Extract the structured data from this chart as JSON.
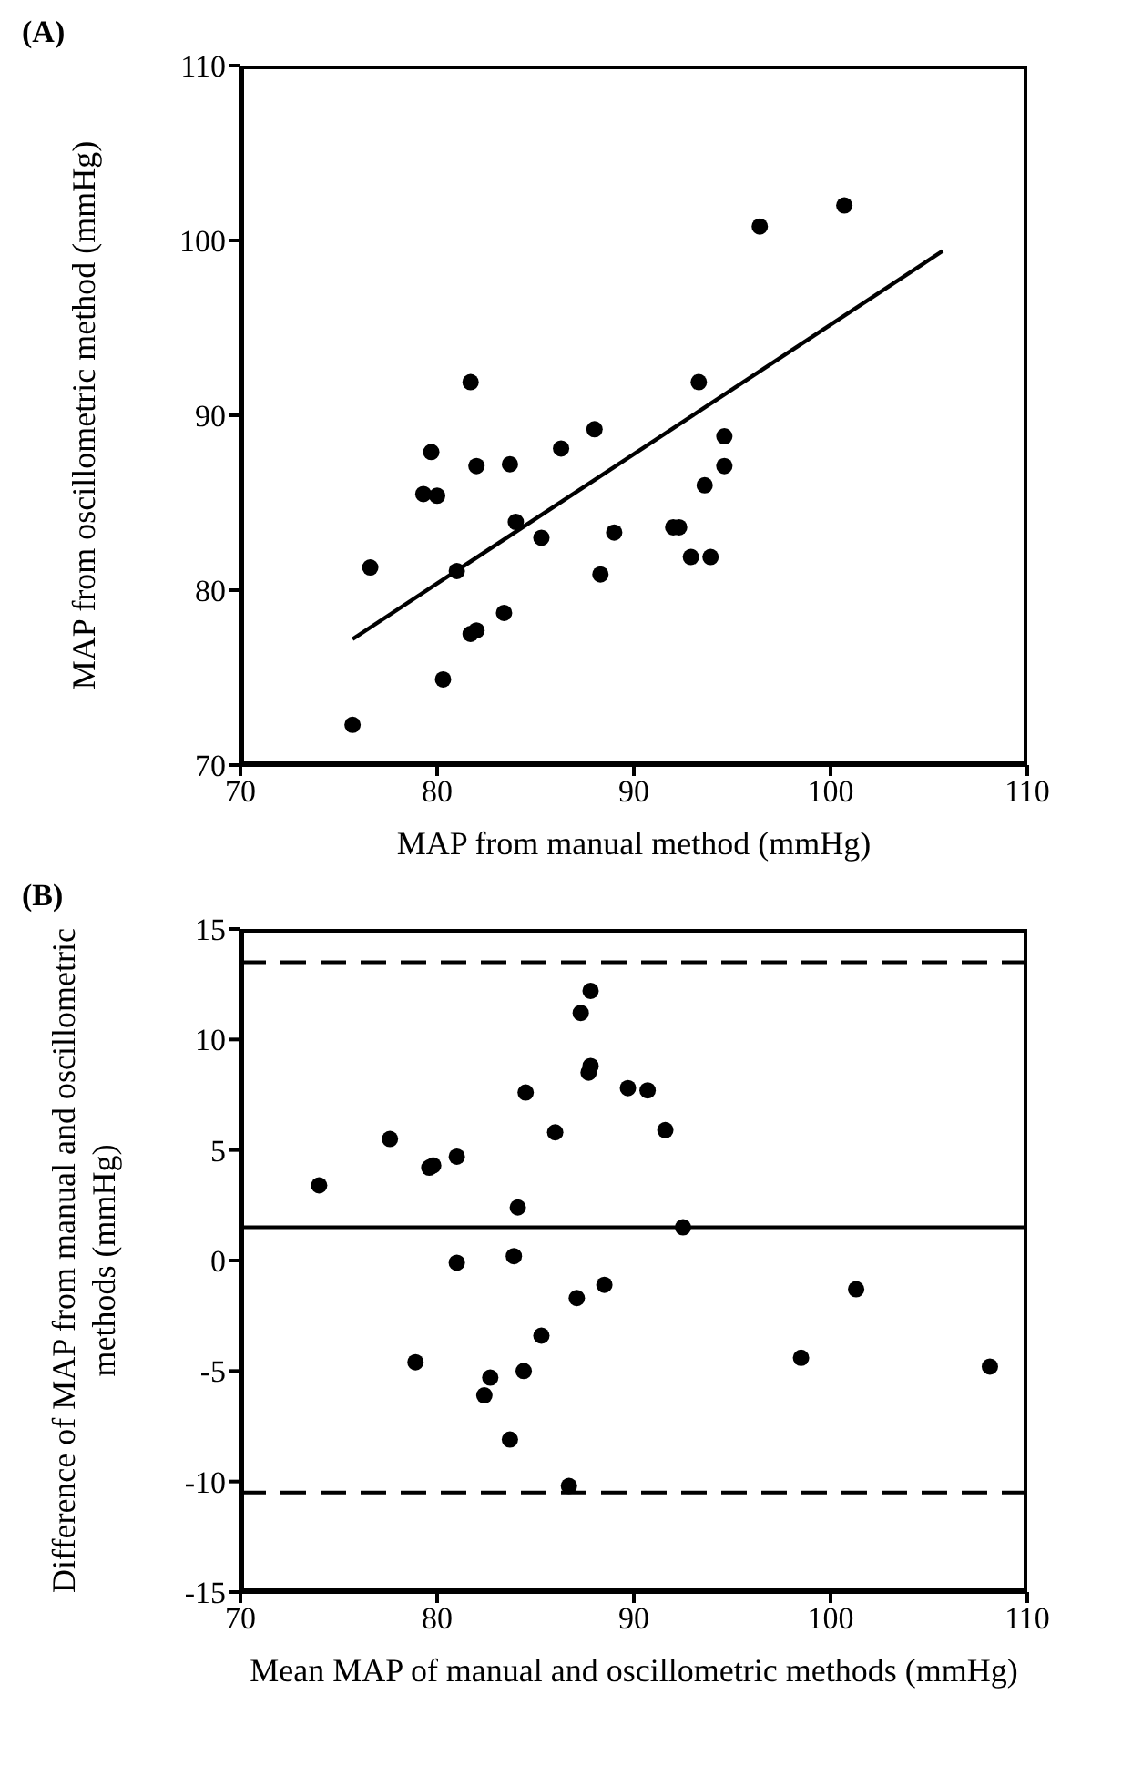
{
  "chart_data": [
    {
      "type": "scatter",
      "title": "(A)",
      "xlabel": "MAP from manual method (mmHg)",
      "ylabel": "MAP from oscillometric method (mmHg)",
      "xlim": [
        70,
        110
      ],
      "xticks": [
        70,
        80,
        90,
        100,
        110
      ],
      "ylim": [
        70,
        110
      ],
      "yticks": [
        70,
        80,
        90,
        100,
        110
      ],
      "marker": "circle",
      "series": [
        {
          "color": "#000000",
          "x": [
            75.7,
            76.6,
            79.3,
            79.7,
            80.0,
            80.3,
            81.0,
            81.7,
            81.7,
            82.0,
            82.0,
            83.4,
            83.7,
            84.0,
            85.3,
            86.3,
            88.0,
            88.3,
            89.0,
            92.0,
            92.3,
            92.9,
            93.3,
            93.6,
            93.9,
            94.6,
            94.6,
            96.4,
            100.7
          ],
          "values": [
            72.3,
            81.3,
            85.5,
            87.9,
            85.4,
            74.9,
            81.1,
            91.9,
            77.5,
            87.1,
            77.7,
            78.7,
            87.2,
            83.9,
            83.0,
            88.1,
            89.2,
            80.9,
            83.3,
            83.6,
            83.6,
            81.9,
            91.9,
            86.0,
            81.9,
            88.8,
            87.1,
            100.8,
            102.0
          ]
        },
        {
          "type": "line",
          "color": "#000000",
          "marker": "none",
          "x": [
            75.7,
            105.7
          ],
          "values": [
            77.2,
            99.4
          ]
        }
      ]
    },
    {
      "type": "scatter",
      "title": "(B)",
      "xlabel": "Mean MAP of manual and oscillometric methods (mmHg)",
      "ylabel": "Difference of MAP from manual and oscillometric methods (mmHg)",
      "xlim": [
        70,
        110
      ],
      "xticks": [
        70,
        80,
        90,
        100,
        110
      ],
      "ylim": [
        -15,
        15
      ],
      "yticks": [
        -15,
        -10,
        -5,
        0,
        5,
        10,
        15
      ],
      "marker": "circle",
      "series": [
        {
          "color": "#000000",
          "x": [
            74.0,
            77.6,
            78.9,
            79.6,
            79.8,
            81.0,
            81.0,
            82.4,
            82.7,
            83.7,
            83.9,
            84.1,
            84.5,
            84.4,
            85.3,
            86.0,
            86.7,
            87.1,
            87.3,
            87.8,
            87.7,
            87.8,
            88.5,
            89.7,
            90.7,
            91.6,
            92.5,
            98.5,
            101.3,
            108.1
          ],
          "values": [
            3.4,
            5.5,
            -4.6,
            4.2,
            4.3,
            4.7,
            -0.1,
            -6.1,
            -5.3,
            -8.1,
            0.2,
            2.4,
            7.6,
            -5.0,
            -3.4,
            5.8,
            -10.2,
            -1.7,
            11.2,
            12.2,
            8.5,
            8.8,
            -1.1,
            7.8,
            7.7,
            5.9,
            1.5,
            -4.4,
            -1.3,
            -4.8
          ]
        }
      ],
      "ref_lines": [
        {
          "axis": "y",
          "value": 1.5,
          "line_style": "solid",
          "color": "#000000"
        },
        {
          "axis": "y",
          "value": 13.5,
          "line_style": "dashed",
          "color": "#000000"
        },
        {
          "axis": "y",
          "value": -10.5,
          "line_style": "dashed",
          "color": "#000000"
        }
      ]
    }
  ]
}
